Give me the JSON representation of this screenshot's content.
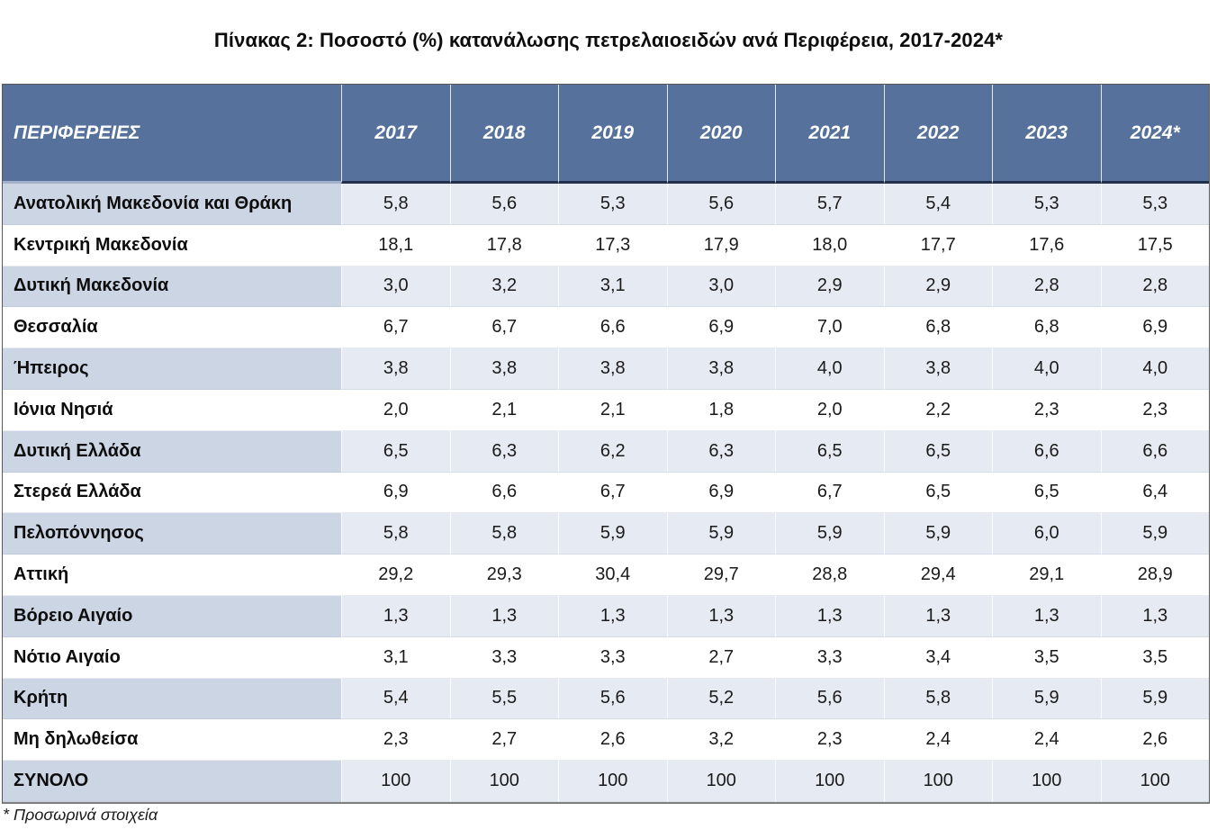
{
  "page": {
    "title": "Πίνακας 2: Ποσοστό (%) κατανάλωσης πετρελαιοειδών ανά Περιφέρεια, 2017-2024*",
    "footnote": "* Προσωρινά στοιχεία"
  },
  "colors": {
    "header_bg": "#56719B",
    "header_text": "#FFFFFF",
    "shaded_label_bg": "#CBD5E3",
    "shaded_value_bg": "#E6EBF3",
    "row_white": "#FFFFFF",
    "header_underline_dark": "#20304A",
    "outer_border": "#595959"
  },
  "chart_data": {
    "type": "table",
    "title": "Πίνακας 2: Ποσοστό (%) κατανάλωσης πετρελαιοειδών ανά Περιφέρεια, 2017-2024*",
    "columns": [
      "ΠΕΡΙΦΕΡΕΙΕΣ",
      "2017",
      "2018",
      "2019",
      "2020",
      "2021",
      "2022",
      "2023",
      "2024*"
    ],
    "rows": [
      {
        "region": "Ανατολική Μακεδονία και Θράκη",
        "values": [
          "5,8",
          "5,6",
          "5,3",
          "5,6",
          "5,7",
          "5,4",
          "5,3",
          "5,3"
        ]
      },
      {
        "region": "Κεντρική Μακεδονία",
        "values": [
          "18,1",
          "17,8",
          "17,3",
          "17,9",
          "18,0",
          "17,7",
          "17,6",
          "17,5"
        ]
      },
      {
        "region": "Δυτική Μακεδονία",
        "values": [
          "3,0",
          "3,2",
          "3,1",
          "3,0",
          "2,9",
          "2,9",
          "2,8",
          "2,8"
        ]
      },
      {
        "region": "Θεσσαλία",
        "values": [
          "6,7",
          "6,7",
          "6,6",
          "6,9",
          "7,0",
          "6,8",
          "6,8",
          "6,9"
        ]
      },
      {
        "region": "Ήπειρος",
        "values": [
          "3,8",
          "3,8",
          "3,8",
          "3,8",
          "4,0",
          "3,8",
          "4,0",
          "4,0"
        ]
      },
      {
        "region": "Ιόνια Νησιά",
        "values": [
          "2,0",
          "2,1",
          "2,1",
          "1,8",
          "2,0",
          "2,2",
          "2,3",
          "2,3"
        ]
      },
      {
        "region": "Δυτική Ελλάδα",
        "values": [
          "6,5",
          "6,3",
          "6,2",
          "6,3",
          "6,5",
          "6,5",
          "6,6",
          "6,6"
        ]
      },
      {
        "region": "Στερεά Ελλάδα",
        "values": [
          "6,9",
          "6,6",
          "6,7",
          "6,9",
          "6,7",
          "6,5",
          "6,5",
          "6,4"
        ]
      },
      {
        "region": "Πελοπόννησος",
        "values": [
          "5,8",
          "5,8",
          "5,9",
          "5,9",
          "5,9",
          "5,9",
          "6,0",
          "5,9"
        ]
      },
      {
        "region": "Αττική",
        "values": [
          "29,2",
          "29,3",
          "30,4",
          "29,7",
          "28,8",
          "29,4",
          "29,1",
          "28,9"
        ]
      },
      {
        "region": "Βόρειο Αιγαίο",
        "values": [
          "1,3",
          "1,3",
          "1,3",
          "1,3",
          "1,3",
          "1,3",
          "1,3",
          "1,3"
        ]
      },
      {
        "region": "Νότιο Αιγαίο",
        "values": [
          "3,1",
          "3,3",
          "3,3",
          "2,7",
          "3,3",
          "3,4",
          "3,5",
          "3,5"
        ]
      },
      {
        "region": "Κρήτη",
        "values": [
          "5,4",
          "5,5",
          "5,6",
          "5,2",
          "5,6",
          "5,8",
          "5,9",
          "5,9"
        ]
      },
      {
        "region": "Μη δηλωθείσα",
        "values": [
          "2,3",
          "2,7",
          "2,6",
          "3,2",
          "2,3",
          "2,4",
          "2,4",
          "2,6"
        ]
      },
      {
        "region": "ΣΥΝΟΛΟ",
        "is_total": true,
        "values": [
          "100",
          "100",
          "100",
          "100",
          "100",
          "100",
          "100",
          "100"
        ]
      }
    ],
    "footnote": "* Προσωρινά στοιχεία"
  }
}
